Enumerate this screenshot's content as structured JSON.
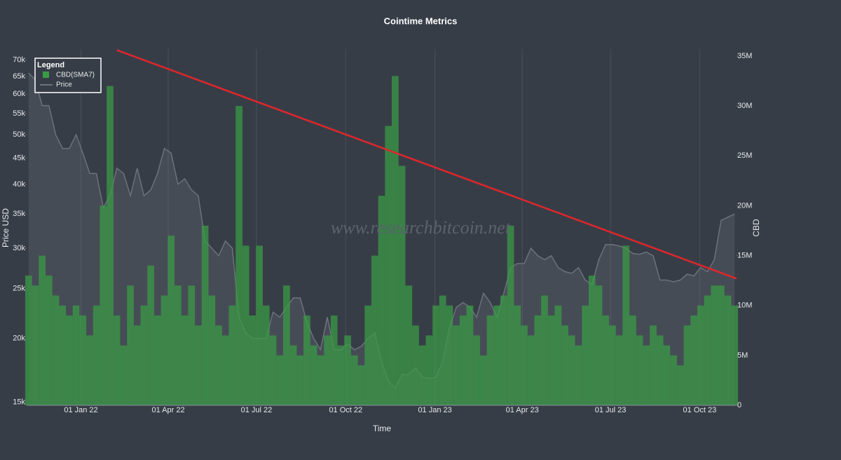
{
  "chart_data": {
    "type": "combo",
    "title": "Cointime Metrics",
    "xlabel": "Time",
    "ylabel": "Price USD",
    "y2label": "CBD",
    "legend_title": "Legend",
    "legend": "top-left",
    "watermark": "www.researchbitcoin.net",
    "ylog": true,
    "xgrid": true,
    "x": [
      "2021-11-08",
      "2021-11-15",
      "2021-11-22",
      "2021-11-29",
      "2021-12-06",
      "2021-12-13",
      "2021-12-20",
      "2021-12-27",
      "2022-01-03",
      "2022-01-10",
      "2022-01-17",
      "2022-01-24",
      "2022-01-31",
      "2022-02-07",
      "2022-02-14",
      "2022-02-21",
      "2022-02-28",
      "2022-03-07",
      "2022-03-14",
      "2022-03-21",
      "2022-03-28",
      "2022-04-04",
      "2022-04-11",
      "2022-04-18",
      "2022-04-25",
      "2022-05-02",
      "2022-05-09",
      "2022-05-16",
      "2022-05-23",
      "2022-05-30",
      "2022-06-06",
      "2022-06-13",
      "2022-06-20",
      "2022-06-27",
      "2022-07-04",
      "2022-07-11",
      "2022-07-18",
      "2022-07-25",
      "2022-08-01",
      "2022-08-08",
      "2022-08-15",
      "2022-08-22",
      "2022-08-29",
      "2022-09-05",
      "2022-09-12",
      "2022-09-19",
      "2022-09-26",
      "2022-10-03",
      "2022-10-10",
      "2022-10-17",
      "2022-10-24",
      "2022-10-31",
      "2022-11-07",
      "2022-11-14",
      "2022-11-21",
      "2022-11-28",
      "2022-12-05",
      "2022-12-12",
      "2022-12-19",
      "2022-12-26",
      "2023-01-02",
      "2023-01-09",
      "2023-01-16",
      "2023-01-23",
      "2023-01-30",
      "2023-02-06",
      "2023-02-13",
      "2023-02-20",
      "2023-02-27",
      "2023-03-06",
      "2023-03-13",
      "2023-03-20",
      "2023-03-27",
      "2023-04-03",
      "2023-04-10",
      "2023-04-17",
      "2023-04-24",
      "2023-05-01",
      "2023-05-08",
      "2023-05-15",
      "2023-05-22",
      "2023-05-29",
      "2023-06-05",
      "2023-06-12",
      "2023-06-19",
      "2023-06-26",
      "2023-07-03",
      "2023-07-10",
      "2023-07-17",
      "2023-07-24",
      "2023-07-31",
      "2023-08-07",
      "2023-08-14",
      "2023-08-21",
      "2023-08-28",
      "2023-09-04",
      "2023-09-11",
      "2023-09-18",
      "2023-09-25",
      "2023-10-02",
      "2023-10-09",
      "2023-10-16",
      "2023-10-23",
      "2023-10-30",
      "2023-11-06"
    ],
    "series": [
      {
        "name": "CBD(SMA7)",
        "type": "bar",
        "axis": "y2",
        "color": "#3b9a46",
        "values": [
          13000000,
          12000000,
          15000000,
          13000000,
          11000000,
          10000000,
          9000000,
          10000000,
          9000000,
          7000000,
          10000000,
          20000000,
          32000000,
          9000000,
          6000000,
          12000000,
          8000000,
          10000000,
          14000000,
          9000000,
          11000000,
          17000000,
          12000000,
          9000000,
          12000000,
          8000000,
          18000000,
          11000000,
          8000000,
          7000000,
          10000000,
          30000000,
          16000000,
          9000000,
          16000000,
          10000000,
          7000000,
          5000000,
          12000000,
          6000000,
          5000000,
          9000000,
          6000000,
          5000000,
          7000000,
          9000000,
          6000000,
          7000000,
          5000000,
          4000000,
          10000000,
          15000000,
          21000000,
          28000000,
          33000000,
          24000000,
          12000000,
          8000000,
          6000000,
          7000000,
          10000000,
          11000000,
          10000000,
          8000000,
          9000000,
          10000000,
          7000000,
          5000000,
          9000000,
          10000000,
          11000000,
          18000000,
          10000000,
          8000000,
          7000000,
          9000000,
          11000000,
          9000000,
          10000000,
          8000000,
          7000000,
          6000000,
          10000000,
          13000000,
          12000000,
          9000000,
          8000000,
          7000000,
          16000000,
          9000000,
          7000000,
          6000000,
          8000000,
          7000000,
          6000000,
          5000000,
          4000000,
          8000000,
          9000000,
          10000000,
          11000000,
          12000000,
          12000000,
          11000000,
          10000000
        ]
      },
      {
        "name": "Price",
        "type": "line",
        "color": "#6c717a",
        "values": [
          66000,
          64000,
          57000,
          57000,
          50000,
          47000,
          47000,
          50000,
          46000,
          42000,
          42000,
          36000,
          38000,
          43000,
          42000,
          38000,
          43000,
          38000,
          39000,
          42000,
          47000,
          46000,
          40000,
          41000,
          39000,
          38000,
          31000,
          30000,
          29000,
          31000,
          30000,
          22000,
          20500,
          20000,
          20000,
          20000,
          22500,
          22000,
          23000,
          24000,
          24000,
          21500,
          20000,
          19000,
          22000,
          19000,
          19000,
          19500,
          19000,
          19300,
          20000,
          20500,
          18000,
          16500,
          16000,
          17000,
          17000,
          17500,
          16800,
          16700,
          16800,
          18000,
          21000,
          23000,
          23500,
          23000,
          22000,
          24500,
          23500,
          22000,
          24500,
          27500,
          28000,
          28000,
          30000,
          29000,
          28500,
          29000,
          27500,
          27000,
          26800,
          27500,
          26000,
          25500,
          28500,
          30500,
          30500,
          30300,
          30000,
          29300,
          29200,
          29500,
          29000,
          26000,
          26000,
          25800,
          26000,
          26700,
          26500,
          27500,
          27000,
          28500,
          34000,
          34500,
          35000
        ]
      }
    ],
    "shapes": [
      {
        "type": "line",
        "x": [
          "2022-02-07",
          "2023-11-08"
        ],
        "y2": [
          35600000,
          12700000
        ],
        "color": "#e0262b"
      }
    ],
    "xlim": [
      "2021-11-06",
      "2023-11-08"
    ],
    "xticks": [
      {
        "value": "2022-01-01",
        "label": "01 Jan 22"
      },
      {
        "value": "2022-04-01",
        "label": "01 Apr 22"
      },
      {
        "value": "2022-07-01",
        "label": "01 Jul 22"
      },
      {
        "value": "2022-10-01",
        "label": "01 Oct 22"
      },
      {
        "value": "2023-01-01",
        "label": "01 Jan 23"
      },
      {
        "value": "2023-04-01",
        "label": "01 Apr 23"
      },
      {
        "value": "2023-07-01",
        "label": "01 Jul 23"
      },
      {
        "value": "2023-10-01",
        "label": "01 Oct 23"
      }
    ],
    "ylim": [
      14800,
      73500
    ],
    "yticks": [
      {
        "value": 15000,
        "label": "15k"
      },
      {
        "value": 20000,
        "label": "20k"
      },
      {
        "value": 25000,
        "label": "25k"
      },
      {
        "value": 30000,
        "label": "30k"
      },
      {
        "value": 35000,
        "label": "35k"
      },
      {
        "value": 40000,
        "label": "40k"
      },
      {
        "value": 45000,
        "label": "45k"
      },
      {
        "value": 50000,
        "label": "50k"
      },
      {
        "value": 55000,
        "label": "55k"
      },
      {
        "value": 60000,
        "label": "60k"
      },
      {
        "value": 65000,
        "label": "65k"
      },
      {
        "value": 70000,
        "label": "70k"
      }
    ],
    "y2lim": [
      0,
      35700000
    ],
    "y2ticks": [
      0,
      {
        "value": 5000000,
        "label": "5M"
      },
      {
        "value": 10000000,
        "label": "10M"
      },
      {
        "value": 15000000,
        "label": "15M"
      },
      {
        "value": 20000000,
        "label": "20M"
      },
      {
        "value": 25000000,
        "label": "25M"
      },
      {
        "value": 30000000,
        "label": "30M"
      },
      {
        "value": 35000000,
        "label": "35M"
      }
    ]
  }
}
